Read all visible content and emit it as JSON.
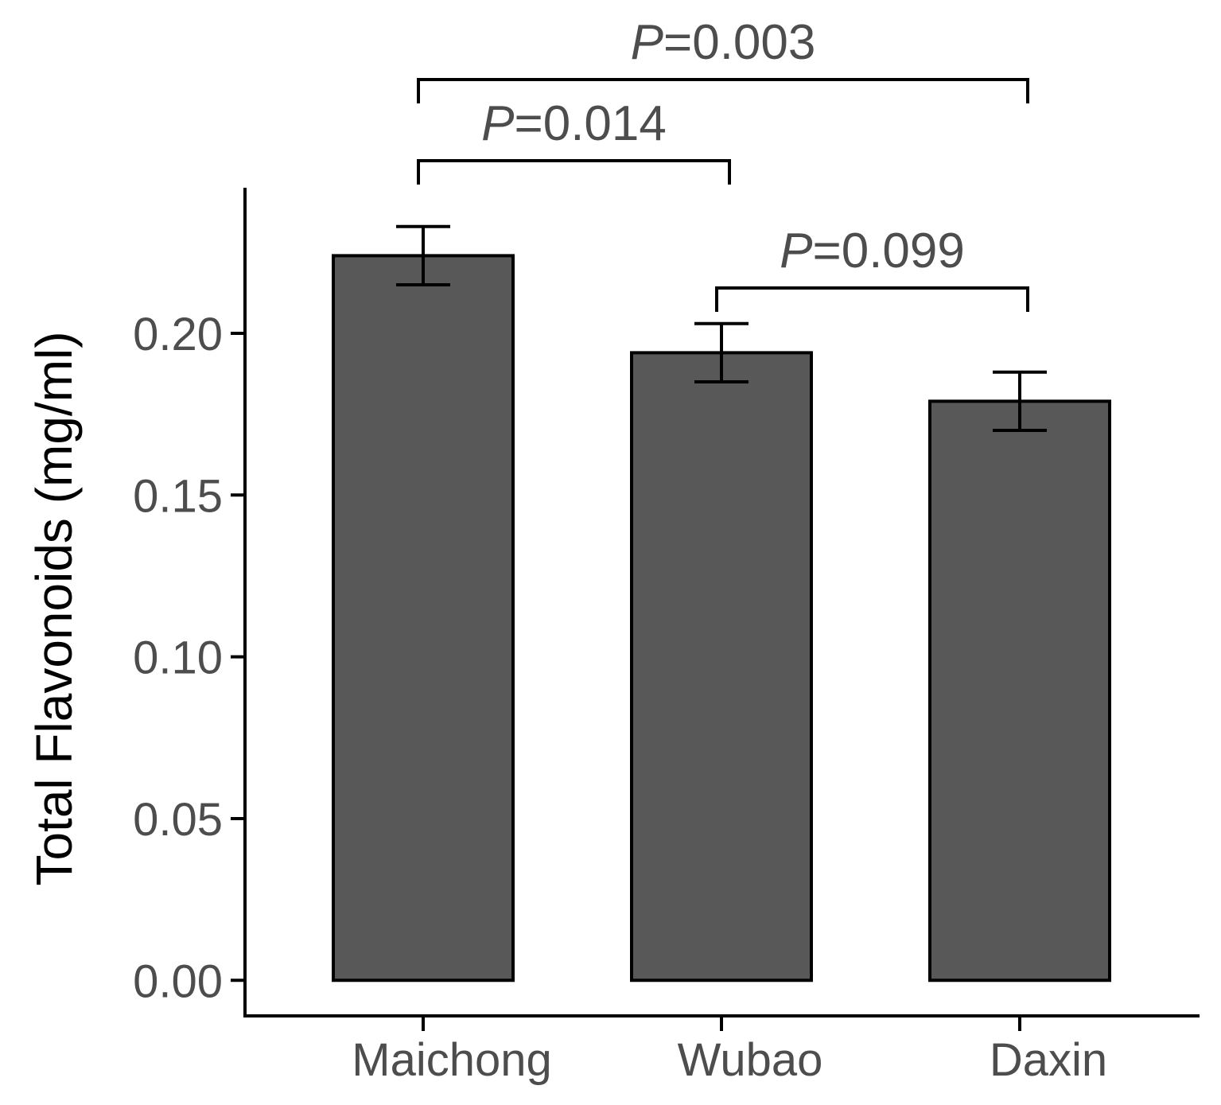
{
  "chart_data": {
    "type": "bar",
    "title": "",
    "xlabel": "",
    "ylabel": "Total Flavonoids (mg/ml)",
    "categories": [
      "Maichong",
      "Wubao",
      "Daxin"
    ],
    "values": [
      0.224,
      0.194,
      0.179
    ],
    "errors": [
      0.009,
      0.009,
      0.009
    ],
    "ylim": [
      -0.011,
      0.245
    ],
    "yticks": [
      0.0,
      0.05,
      0.1,
      0.15,
      0.2
    ],
    "ytick_labels": [
      "0.00",
      "0.05",
      "0.10",
      "0.15",
      "0.20"
    ],
    "bar_color": "#575857",
    "bar_edge_color": "#000000",
    "comparisons": [
      {
        "from": 0,
        "to": 2,
        "p_prefix": "P",
        "p_value": "=0.003",
        "level": 2
      },
      {
        "from": 0,
        "to": 1,
        "p_prefix": "P",
        "p_value": "=0.014",
        "level": 1
      },
      {
        "from": 1,
        "to": 2,
        "p_prefix": "P",
        "p_value": "=0.099",
        "level": 0
      }
    ]
  }
}
